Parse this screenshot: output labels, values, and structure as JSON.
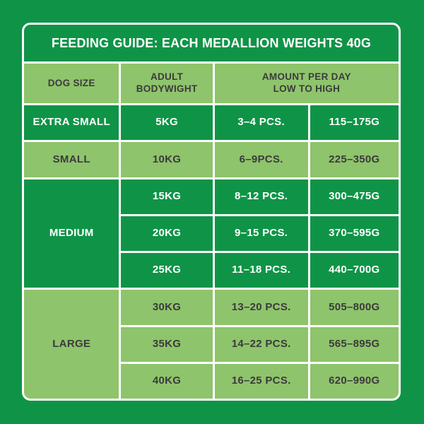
{
  "title": "FEEDING GUIDE: EACH MEDALLION WEIGHTS 40G",
  "colors": {
    "page_background": "#0f9447",
    "dark_cell": "#0f9447",
    "light_cell": "#8ec46c",
    "dark_text": "#3c3a3b",
    "light_text": "#ffffff",
    "grid_lines": "#ffffff"
  },
  "table": {
    "headers": {
      "dog_size": "DOG SIZE",
      "bodyweight_line1": "ADULT",
      "bodyweight_line2": "BODYWIGHT",
      "amount_line1": "AMOUNT PER DAY",
      "amount_line2": "LOW TO HIGH"
    },
    "groups": [
      {
        "size": "EXTRA SMALL",
        "shade": "dark",
        "rows": [
          {
            "weight": "5KG",
            "pieces": "3–4 PCS.",
            "grams": "115–175G"
          }
        ]
      },
      {
        "size": "SMALL",
        "shade": "light",
        "rows": [
          {
            "weight": "10KG",
            "pieces": "6–9PCS.",
            "grams": "225–350G"
          }
        ]
      },
      {
        "size": "MEDIUM",
        "shade": "dark",
        "rows": [
          {
            "weight": "15KG",
            "pieces": "8–12 PCS.",
            "grams": "300–475G"
          },
          {
            "weight": "20KG",
            "pieces": "9–15 PCS.",
            "grams": "370–595G"
          },
          {
            "weight": "25KG",
            "pieces": "11–18 PCS.",
            "grams": "440–700G"
          }
        ]
      },
      {
        "size": "LARGE",
        "shade": "light",
        "rows": [
          {
            "weight": "30KG",
            "pieces": "13–20 PCS.",
            "grams": "505–800G"
          },
          {
            "weight": "35KG",
            "pieces": "14–22 PCS.",
            "grams": "565–895G"
          },
          {
            "weight": "40KG",
            "pieces": "16–25 PCS.",
            "grams": "620–990G"
          }
        ]
      }
    ]
  },
  "chart_data": {
    "type": "table",
    "title": "FEEDING GUIDE: EACH MEDALLION WEIGHTS 40G",
    "columns": [
      "DOG SIZE",
      "ADULT BODYWIGHT",
      "AMOUNT PER DAY LOW TO HIGH (PCS.)",
      "AMOUNT PER DAY LOW TO HIGH (G)"
    ],
    "rows": [
      [
        "EXTRA SMALL",
        "5KG",
        "3–4 PCS.",
        "115–175G"
      ],
      [
        "SMALL",
        "10KG",
        "6–9PCS.",
        "225–350G"
      ],
      [
        "MEDIUM",
        "15KG",
        "8–12 PCS.",
        "300–475G"
      ],
      [
        "MEDIUM",
        "20KG",
        "9–15 PCS.",
        "370–595G"
      ],
      [
        "MEDIUM",
        "25KG",
        "11–18 PCS.",
        "440–700G"
      ],
      [
        "LARGE",
        "30KG",
        "13–20 PCS.",
        "505–800G"
      ],
      [
        "LARGE",
        "35KG",
        "14–22 PCS.",
        "565–895G"
      ],
      [
        "LARGE",
        "40KG",
        "16–25 PCS.",
        "620–990G"
      ]
    ]
  }
}
